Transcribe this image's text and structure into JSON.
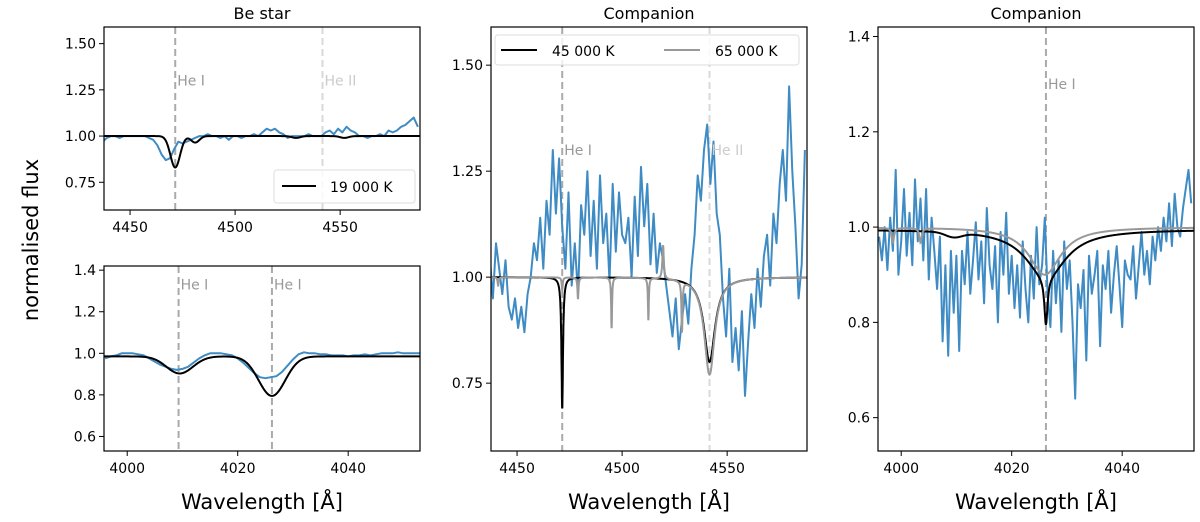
{
  "figure": {
    "ylabel": "normalised flux",
    "colors": {
      "observed": "#3f8bc4",
      "model_a": "#000000",
      "model_b": "#999999",
      "he1": "#aaaaaa",
      "he2": "#d9d9d9"
    }
  },
  "chart_data": [
    {
      "id": "be-star-4471",
      "type": "line",
      "title": "Be star",
      "xlabel": "",
      "xlim": [
        4437.6,
        4588
      ],
      "ylim": [
        0.6,
        1.59
      ],
      "xticks": [
        4450,
        4500,
        4550
      ],
      "xtick_labels": [
        "4450",
        "4500",
        "4550"
      ],
      "yticks": [
        0.75,
        1.0,
        1.25,
        1.5
      ],
      "ytick_labels": [
        "0.75",
        "1.00",
        "1.25",
        "1.50"
      ],
      "lines": [
        {
          "x": 4471.5,
          "label": "He I",
          "kind": "he1"
        },
        {
          "x": 4541.6,
          "label": "He II",
          "kind": "he2"
        }
      ],
      "label_y": 1.3,
      "legend": {
        "placement": "lower-right",
        "entries": [
          {
            "label": "19 000 K",
            "kind": "model_a"
          }
        ]
      },
      "observed": {
        "x_start": 4437,
        "x_step": 2,
        "y": [
          0.97,
          0.99,
          1.0,
          1.0,
          0.99,
          1.0,
          1.0,
          1.0,
          1.0,
          1.0,
          1.0,
          0.99,
          0.98,
          0.95,
          0.9,
          0.87,
          0.88,
          0.93,
          0.97,
          0.96,
          0.97,
          0.98,
          0.99,
          1.0,
          1.0,
          1.01,
          1.0,
          1.0,
          0.99,
          1.0,
          0.98,
          1.0,
          1.0,
          0.99,
          1.0,
          1.0,
          1.01,
          1.0,
          1.02,
          1.04,
          1.03,
          1.04,
          1.02,
          1.01,
          0.99,
          1.0,
          1.0,
          1.0,
          1.0,
          1.01,
          1.0,
          1.0,
          1.0,
          1.02,
          1.03,
          1.01,
          1.04,
          1.02,
          1.05,
          1.03,
          1.02,
          1.0,
          1.0,
          0.99,
          1.0,
          1.0,
          1.01,
          1.0,
          1.03,
          1.02,
          1.03,
          1.05,
          1.06,
          1.08,
          1.1,
          1.05
        ]
      },
      "models": [
        {
          "name": "19 000 K",
          "kind": "model_a",
          "continuum": 1.0,
          "components": [
            {
              "shape": "gauss",
              "center": 4471.5,
              "depth": 0.17,
              "width": 2.3
            },
            {
              "shape": "gauss",
              "center": 4481,
              "depth": 0.035,
              "width": 2
            },
            {
              "shape": "gauss",
              "center": 4529,
              "depth": 0.01,
              "width": 2
            },
            {
              "shape": "gauss",
              "center": 4552,
              "depth": 0.01,
              "width": 2
            }
          ]
        }
      ]
    },
    {
      "id": "be-star-4026",
      "type": "line",
      "title": "",
      "xlabel": "Wavelength [Å]",
      "xlim": [
        3995.8,
        4053
      ],
      "ylim": [
        0.53,
        1.42
      ],
      "xticks": [
        4000,
        4020,
        4040
      ],
      "xtick_labels": [
        "4000",
        "4020",
        "4040"
      ],
      "yticks": [
        0.6,
        0.8,
        1.0,
        1.2,
        1.4
      ],
      "ytick_labels": [
        "0.6",
        "0.8",
        "1.0",
        "1.2",
        "1.4"
      ],
      "lines": [
        {
          "x": 4009.3,
          "label": "He I",
          "kind": "he1"
        },
        {
          "x": 4026.2,
          "label": "He I",
          "kind": "he1"
        }
      ],
      "label_y": 1.33,
      "observed": {
        "x_start": 3996,
        "x_step": 1,
        "y": [
          0.975,
          0.985,
          0.99,
          1.0,
          1.0,
          1.0,
          0.995,
          0.99,
          0.975,
          0.96,
          0.945,
          0.935,
          0.925,
          0.92,
          0.925,
          0.935,
          0.955,
          0.975,
          0.99,
          1.0,
          1.0,
          1.0,
          0.995,
          0.99,
          0.975,
          0.955,
          0.93,
          0.905,
          0.885,
          0.88,
          0.885,
          0.89,
          0.91,
          0.94,
          0.97,
          0.995,
          1.005,
          1.0,
          1.0,
          0.995,
          0.995,
          0.99,
          0.99,
          0.99,
          0.985,
          0.99,
          0.99,
          0.995,
          0.99,
          0.995,
          1.0,
          1.0,
          1.0,
          1.005,
          1.0,
          1.0,
          1.0,
          1.0
        ]
      },
      "models": [
        {
          "name": "19 000 K",
          "kind": "model_a",
          "continuum": 0.985,
          "components": [
            {
              "shape": "gauss",
              "center": 4009.5,
              "depth": 0.082,
              "width": 2.4
            },
            {
              "shape": "gauss",
              "center": 4026.2,
              "depth": 0.19,
              "width": 2.4
            }
          ]
        }
      ]
    },
    {
      "id": "companion-4471",
      "type": "line",
      "title": "Companion",
      "xlabel": "Wavelength [Å]",
      "xlim": [
        4437.6,
        4588
      ],
      "ylim": [
        0.59,
        1.59
      ],
      "xticks": [
        4450,
        4500,
        4550
      ],
      "xtick_labels": [
        "4450",
        "4500",
        "4550"
      ],
      "yticks": [
        0.75,
        1.0,
        1.25,
        1.5
      ],
      "ytick_labels": [
        "0.75",
        "1.00",
        "1.25",
        "1.50"
      ],
      "lines": [
        {
          "x": 4471.5,
          "label": "He I",
          "kind": "he1"
        },
        {
          "x": 4541.6,
          "label": "He II",
          "kind": "he2"
        }
      ],
      "label_y": 1.3,
      "legend": {
        "placement": "top",
        "entries": [
          {
            "label": "45 000 K",
            "kind": "model_a"
          },
          {
            "label": "65 000 K",
            "kind": "model_b"
          }
        ]
      },
      "observed": {
        "x_start": 4437,
        "x_step": 1.5,
        "y": [
          1.05,
          0.95,
          1.08,
          1.02,
          0.96,
          1.04,
          0.93,
          0.9,
          0.95,
          0.88,
          0.93,
          0.87,
          0.96,
          1.0,
          1.08,
          1.04,
          1.14,
          1.02,
          1.18,
          1.1,
          1.3,
          1.15,
          1.28,
          1.12,
          1.02,
          1.2,
          0.98,
          1.08,
          0.96,
          1.17,
          1.1,
          1.25,
          1.05,
          1.18,
          1.02,
          1.24,
          1.08,
          1.15,
          0.99,
          1.22,
          1.06,
          1.2,
          1.1,
          1.08,
          1.14,
          1.0,
          1.19,
          1.05,
          1.26,
          1.12,
          1.22,
          1.03,
          1.15,
          1.01,
          1.08,
          1.04,
          0.98,
          0.92,
          0.86,
          0.95,
          0.83,
          0.9,
          0.96,
          0.89,
          1.02,
          1.1,
          1.24,
          1.18,
          1.3,
          1.36,
          1.22,
          1.32,
          1.15,
          1.1,
          0.95,
          0.86,
          1.02,
          0.8,
          0.88,
          0.78,
          0.92,
          0.72,
          0.85,
          0.96,
          0.88,
          1.02,
          0.93,
          1.05,
          1.1,
          0.98,
          1.15,
          1.08,
          1.22,
          1.3,
          1.18,
          1.45,
          1.25,
          1.12,
          0.95,
          1.03,
          1.3
        ]
      },
      "models": [
        {
          "name": "45 000 K",
          "kind": "model_a",
          "continuum": 1.0,
          "components": [
            {
              "shape": "lorentz",
              "center": 4471.5,
              "depth": 0.31,
              "width": 0.45
            },
            {
              "shape": "lorentz",
              "center": 4541.6,
              "depth": 0.2,
              "width": 3.2
            }
          ]
        },
        {
          "name": "65 000 K",
          "kind": "model_b",
          "continuum": 1.0,
          "components": [
            {
              "shape": "lorentz",
              "center": 4441,
              "depth": 0.02,
              "width": 0.3
            },
            {
              "shape": "lorentz",
              "center": 4471.5,
              "depth": 0.03,
              "width": 0.3
            },
            {
              "shape": "lorentz",
              "center": 4479,
              "depth": 0.05,
              "width": 0.3
            },
            {
              "shape": "lorentz",
              "center": 4495,
              "depth": 0.12,
              "width": 0.25
            },
            {
              "shape": "lorentz",
              "center": 4512.5,
              "depth": 0.1,
              "width": 0.25
            },
            {
              "shape": "lorentz",
              "center": 4519.5,
              "depth": -0.08,
              "width": 0.4
            },
            {
              "shape": "lorentz",
              "center": 4528.5,
              "depth": 0.12,
              "width": 0.3
            },
            {
              "shape": "lorentz",
              "center": 4541.6,
              "depth": 0.23,
              "width": 3.0
            }
          ]
        }
      ]
    },
    {
      "id": "companion-4026",
      "type": "line",
      "title": "Companion",
      "xlabel": "Wavelength [Å]",
      "xlim": [
        3995.8,
        4053
      ],
      "ylim": [
        0.53,
        1.42
      ],
      "xticks": [
        4000,
        4020,
        4040
      ],
      "xtick_labels": [
        "4000",
        "4020",
        "4040"
      ],
      "yticks": [
        0.6,
        0.8,
        1.0,
        1.2,
        1.4
      ],
      "ytick_labels": [
        "0.6",
        "0.8",
        "1.0",
        "1.2",
        "1.4"
      ],
      "lines": [
        {
          "x": 4026.2,
          "label": "He I",
          "kind": "he1"
        }
      ],
      "label_y": 1.3,
      "observed": {
        "x_start": 3996,
        "x_step": 0.5,
        "y": [
          0.98,
          0.93,
          1.0,
          0.91,
          1.02,
          0.95,
          1.12,
          0.9,
          0.97,
          1.08,
          0.94,
          1.03,
          0.92,
          1.1,
          0.97,
          1.06,
          0.93,
          1.08,
          0.89,
          1.02,
          0.95,
          0.87,
          0.98,
          0.76,
          0.92,
          0.73,
          0.95,
          0.82,
          0.94,
          0.74,
          0.95,
          0.88,
          0.99,
          0.86,
          0.93,
          1.01,
          0.89,
          0.97,
          0.84,
          1.04,
          0.92,
          0.87,
          0.96,
          0.8,
          0.99,
          0.9,
          1.03,
          0.86,
          0.94,
          0.83,
          0.92,
          0.81,
          0.97,
          0.87,
          0.8,
          0.94,
          0.85,
          1.0,
          0.88,
          0.92,
          1.02,
          0.86,
          0.79,
          0.95,
          0.84,
          0.93,
          0.78,
          0.97,
          0.87,
          0.93,
          0.8,
          0.64,
          0.88,
          0.83,
          0.91,
          0.72,
          0.94,
          0.86,
          0.9,
          0.95,
          0.75,
          0.92,
          0.87,
          0.95,
          0.82,
          0.9,
          0.96,
          0.88,
          0.79,
          0.93,
          0.9,
          0.89,
          0.96,
          0.85,
          0.92,
          0.99,
          0.9,
          0.95,
          0.88,
          0.98,
          0.93,
          1.0,
          0.95,
          1.02,
          0.97,
          1.05,
          0.96,
          1.07,
          1.0,
          0.98,
          1.04,
          1.08,
          1.12,
          1.05
        ]
      },
      "models": [
        {
          "name": "45 000 K",
          "kind": "model_a",
          "continuum": 0.995,
          "components": [
            {
              "shape": "lorentz",
              "center": 4026.2,
              "depth": 0.1,
              "width": 0.35
            },
            {
              "shape": "lorentz",
              "center": 4026.2,
              "depth": 0.1,
              "width": 4.5
            },
            {
              "shape": "gauss",
              "center": 4009.5,
              "depth": 0.01,
              "width": 1.5
            }
          ]
        },
        {
          "name": "65 000 K",
          "kind": "model_b",
          "continuum": 1.0,
          "components": [
            {
              "shape": "lorentz",
              "center": 4026.0,
              "depth": 0.1,
              "width": 3.5
            },
            {
              "shape": "lorentz",
              "center": 3998.5,
              "depth": 0.03,
              "width": 0.25
            },
            {
              "shape": "lorentz",
              "center": 4003.5,
              "depth": 0.03,
              "width": 0.25
            }
          ]
        }
      ]
    }
  ]
}
